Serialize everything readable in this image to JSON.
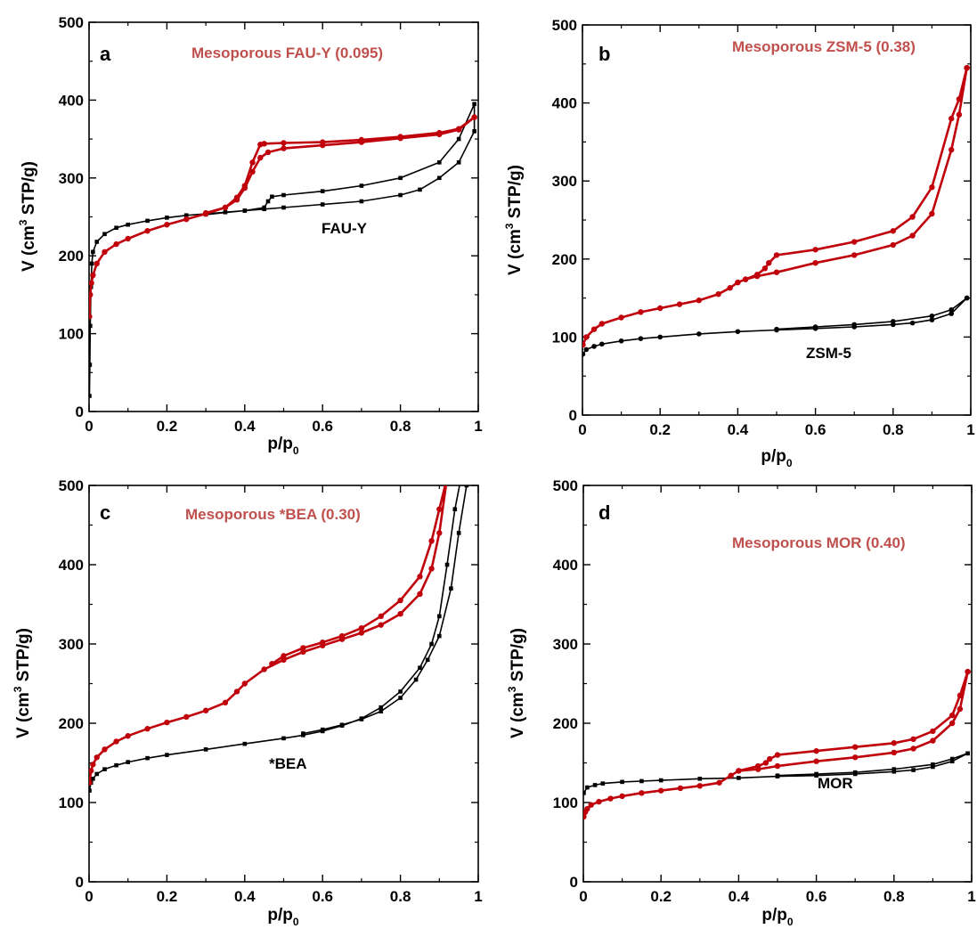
{
  "colors": {
    "parent": "#000000",
    "mesoporous": "#c0000a",
    "mesoporous_label": "#c0504d"
  },
  "chart_data": [
    {
      "type": "line",
      "panel": "a",
      "xlabel": "p/p",
      "xlabel_sub": "0",
      "ylabel": "V (cm",
      "ylabel_sup": "3",
      "ylabel_tail": " STP/g)",
      "xlim": [
        0,
        1
      ],
      "ylim": [
        0,
        500
      ],
      "xticks": [
        "0",
        "0.2",
        "0.4",
        "0.6",
        "0.8",
        "1"
      ],
      "yticks": [
        "0",
        "100",
        "200",
        "300",
        "400",
        "500"
      ],
      "series": [
        {
          "name": "Mesoporous FAU-Y (0.095)",
          "color": "#c0000a",
          "marker": "circle",
          "x": [
            0.001,
            0.003,
            0.006,
            0.01,
            0.02,
            0.04,
            0.07,
            0.1,
            0.15,
            0.2,
            0.25,
            0.3,
            0.35,
            0.38,
            0.4,
            0.42,
            0.44,
            0.46,
            0.5,
            0.6,
            0.7,
            0.8,
            0.9,
            0.95,
            0.99,
            0.99,
            0.95,
            0.9,
            0.8,
            0.7,
            0.6,
            0.5,
            0.45,
            0.44,
            0.42,
            0.4,
            0.38,
            0.35,
            0.3
          ],
          "y": [
            122,
            150,
            165,
            175,
            190,
            205,
            215,
            222,
            232,
            240,
            247,
            254,
            262,
            272,
            287,
            308,
            326,
            333,
            338,
            342,
            346,
            351,
            356,
            362,
            378,
            378,
            363,
            358,
            353,
            349,
            346,
            345,
            344,
            343,
            320,
            290,
            275,
            262,
            255
          ]
        },
        {
          "name": "FAU-Y",
          "color": "#000000",
          "marker": "square",
          "x": [
            0.001,
            0.002,
            0.003,
            0.005,
            0.007,
            0.01,
            0.02,
            0.04,
            0.07,
            0.1,
            0.15,
            0.2,
            0.25,
            0.3,
            0.35,
            0.4,
            0.45,
            0.5,
            0.6,
            0.7,
            0.8,
            0.85,
            0.9,
            0.95,
            0.99,
            0.99,
            0.95,
            0.9,
            0.8,
            0.7,
            0.6,
            0.5,
            0.47,
            0.46,
            0.45,
            0.4,
            0.3
          ],
          "y": [
            20,
            60,
            110,
            160,
            190,
            205,
            218,
            228,
            236,
            240,
            245,
            249,
            252,
            254,
            256,
            258,
            260,
            262,
            266,
            270,
            278,
            285,
            300,
            320,
            360,
            395,
            350,
            320,
            300,
            290,
            283,
            278,
            276,
            270,
            262,
            258,
            253
          ]
        }
      ],
      "annotations": [
        {
          "text": "a",
          "role": "panel"
        },
        {
          "text": "Mesoporous FAU-Y (0.095)",
          "role": "series-label",
          "series": 0
        },
        {
          "text": "FAU-Y",
          "role": "series-label",
          "series": 1
        }
      ]
    },
    {
      "type": "line",
      "panel": "b",
      "xlabel": "p/p",
      "xlabel_sub": "0",
      "ylabel": "V (cm",
      "ylabel_sup": "3",
      "ylabel_tail": " STP/g)",
      "xlim": [
        0,
        1
      ],
      "ylim": [
        0,
        500
      ],
      "xticks": [
        "0",
        "0.2",
        "0.4",
        "0.6",
        "0.8",
        "1"
      ],
      "yticks": [
        "0",
        "100",
        "200",
        "300",
        "400",
        "500"
      ],
      "series": [
        {
          "name": "Mesoporous ZSM-5 (0.38)",
          "color": "#c0000a",
          "marker": "circle",
          "x": [
            0.001,
            0.01,
            0.03,
            0.05,
            0.1,
            0.15,
            0.2,
            0.25,
            0.3,
            0.35,
            0.38,
            0.4,
            0.42,
            0.45,
            0.5,
            0.6,
            0.7,
            0.8,
            0.85,
            0.9,
            0.95,
            0.97,
            0.99,
            0.99,
            0.97,
            0.95,
            0.9,
            0.85,
            0.8,
            0.7,
            0.6,
            0.5,
            0.48,
            0.47,
            0.45,
            0.42,
            0.4
          ],
          "y": [
            90,
            100,
            110,
            117,
            125,
            132,
            137,
            142,
            147,
            155,
            163,
            170,
            174,
            178,
            183,
            195,
            205,
            218,
            230,
            258,
            340,
            385,
            445,
            445,
            405,
            380,
            292,
            254,
            236,
            222,
            212,
            205,
            195,
            188,
            180,
            174,
            170
          ]
        },
        {
          "name": "ZSM-5",
          "color": "#000000",
          "marker": "circle",
          "x": [
            0.001,
            0.01,
            0.03,
            0.05,
            0.1,
            0.15,
            0.2,
            0.3,
            0.4,
            0.5,
            0.6,
            0.7,
            0.8,
            0.85,
            0.9,
            0.95,
            0.99,
            0.99,
            0.95,
            0.9,
            0.8,
            0.7,
            0.6,
            0.5
          ],
          "y": [
            78,
            84,
            88,
            91,
            95,
            98,
            100,
            104,
            107,
            109,
            111,
            113,
            116,
            118,
            122,
            130,
            150,
            150,
            135,
            127,
            120,
            116,
            113,
            110
          ]
        }
      ],
      "annotations": [
        {
          "text": "b",
          "role": "panel"
        },
        {
          "text": "Mesoporous ZSM-5 (0.38)",
          "role": "series-label",
          "series": 0
        },
        {
          "text": "ZSM-5",
          "role": "series-label",
          "series": 1
        }
      ]
    },
    {
      "type": "line",
      "panel": "c",
      "xlabel": "p/p",
      "xlabel_sub": "0",
      "ylabel": "V (cm",
      "ylabel_sup": "3",
      "ylabel_tail": " STP/g)",
      "xlim": [
        0,
        1
      ],
      "ylim": [
        0,
        500
      ],
      "xticks": [
        "0",
        "0.2",
        "0.4",
        "0.6",
        "0.8",
        "1"
      ],
      "yticks": [
        "0",
        "100",
        "200",
        "300",
        "400",
        "500"
      ],
      "series": [
        {
          "name": "Mesoporous *BEA (0.30)",
          "color": "#c0000a",
          "marker": "circle",
          "x": [
            0.001,
            0.005,
            0.01,
            0.02,
            0.04,
            0.07,
            0.1,
            0.15,
            0.2,
            0.25,
            0.3,
            0.35,
            0.38,
            0.4,
            0.45,
            0.5,
            0.55,
            0.6,
            0.65,
            0.7,
            0.75,
            0.8,
            0.85,
            0.88,
            0.9,
            0.92,
            0.92,
            0.9,
            0.88,
            0.85,
            0.8,
            0.75,
            0.7,
            0.65,
            0.6,
            0.55,
            0.5,
            0.47
          ],
          "y": [
            125,
            140,
            148,
            157,
            167,
            177,
            184,
            193,
            201,
            208,
            216,
            226,
            240,
            250,
            268,
            280,
            290,
            298,
            306,
            314,
            324,
            338,
            363,
            395,
            440,
            510,
            510,
            470,
            430,
            385,
            355,
            335,
            320,
            310,
            302,
            295,
            285,
            275
          ]
        },
        {
          "name": "*BEA",
          "color": "#000000",
          "marker": "square",
          "x": [
            0.001,
            0.005,
            0.01,
            0.02,
            0.04,
            0.07,
            0.1,
            0.15,
            0.2,
            0.3,
            0.4,
            0.5,
            0.55,
            0.6,
            0.65,
            0.7,
            0.75,
            0.8,
            0.85,
            0.88,
            0.9,
            0.92,
            0.94,
            0.96,
            0.97,
            0.97,
            0.95,
            0.93,
            0.9,
            0.87,
            0.84,
            0.8,
            0.75,
            0.7,
            0.65,
            0.6,
            0.55
          ],
          "y": [
            115,
            125,
            130,
            136,
            142,
            147,
            151,
            156,
            160,
            167,
            174,
            181,
            185,
            190,
            197,
            206,
            220,
            240,
            270,
            300,
            335,
            400,
            470,
            520,
            520,
            500,
            440,
            370,
            310,
            280,
            255,
            232,
            215,
            205,
            198,
            192,
            187
          ]
        }
      ],
      "annotations": [
        {
          "text": "c",
          "role": "panel"
        },
        {
          "text": "Mesoporous *BEA (0.30)",
          "role": "series-label",
          "series": 0
        },
        {
          "text": "*BEA",
          "role": "series-label",
          "series": 1
        }
      ]
    },
    {
      "type": "line",
      "panel": "d",
      "xlabel": "p/p",
      "xlabel_sub": "0",
      "ylabel": "V (cm",
      "ylabel_sup": "3",
      "ylabel_tail": " STP/g)",
      "xlim": [
        0,
        1
      ],
      "ylim": [
        0,
        500
      ],
      "xticks": [
        "0",
        "0.2",
        "0.4",
        "0.6",
        "0.8",
        "1"
      ],
      "yticks": [
        "0",
        "100",
        "200",
        "300",
        "400",
        "500"
      ],
      "series": [
        {
          "name": "Mesoporous MOR (0.40)",
          "color": "#c0000a",
          "marker": "circle",
          "x": [
            0.001,
            0.005,
            0.01,
            0.02,
            0.04,
            0.07,
            0.1,
            0.15,
            0.2,
            0.25,
            0.3,
            0.35,
            0.38,
            0.4,
            0.45,
            0.5,
            0.6,
            0.7,
            0.8,
            0.85,
            0.9,
            0.95,
            0.97,
            0.99,
            0.99,
            0.97,
            0.95,
            0.9,
            0.85,
            0.8,
            0.7,
            0.6,
            0.5,
            0.48,
            0.47,
            0.45,
            0.4
          ],
          "y": [
            82,
            88,
            92,
            97,
            101,
            105,
            108,
            112,
            115,
            118,
            121,
            125,
            134,
            140,
            142,
            146,
            152,
            157,
            163,
            168,
            178,
            200,
            218,
            265,
            265,
            235,
            210,
            190,
            180,
            175,
            170,
            165,
            160,
            155,
            150,
            146,
            140
          ]
        },
        {
          "name": "MOR",
          "color": "#000000",
          "marker": "square",
          "x": [
            0.001,
            0.01,
            0.03,
            0.05,
            0.1,
            0.15,
            0.2,
            0.3,
            0.4,
            0.5,
            0.6,
            0.7,
            0.8,
            0.85,
            0.9,
            0.95,
            0.99,
            0.99,
            0.95,
            0.9,
            0.8,
            0.7,
            0.6,
            0.5
          ],
          "y": [
            112,
            119,
            122,
            124,
            126,
            127,
            128,
            130,
            131,
            133,
            134,
            136,
            139,
            141,
            145,
            152,
            162,
            162,
            155,
            148,
            142,
            138,
            136,
            134
          ]
        }
      ],
      "annotations": [
        {
          "text": "d",
          "role": "panel"
        },
        {
          "text": "Mesoporous MOR (0.40)",
          "role": "series-label",
          "series": 0
        },
        {
          "text": "MOR",
          "role": "series-label",
          "series": 1
        }
      ]
    }
  ]
}
